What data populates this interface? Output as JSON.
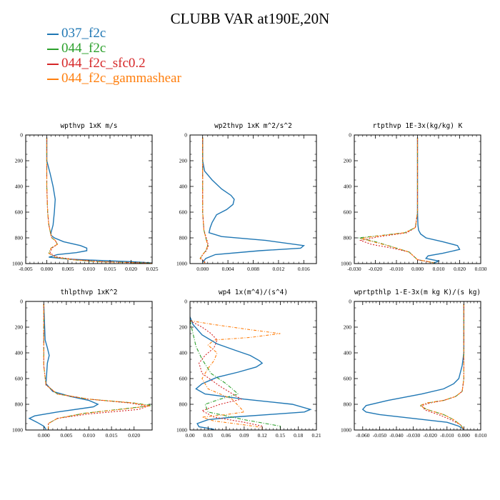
{
  "figure": {
    "title": "CLUBB VAR at190E,20N"
  },
  "legend": {
    "items": [
      {
        "name": "037_f2c",
        "color": "#1f77b4"
      },
      {
        "name": "044_f2c",
        "color": "#2ca02c"
      },
      {
        "name": "044_f2c_sfc0.2",
        "color": "#d62728"
      },
      {
        "name": "044_f2c_gammashear",
        "color": "#ff7f0e"
      }
    ]
  },
  "chart_data": [
    {
      "type": "line",
      "title": "wpthvp 1xK m/s",
      "xlim": [
        -0.005,
        0.025
      ],
      "xticks": [
        -0.005,
        0.0,
        0.005,
        0.01,
        0.015,
        0.02,
        0.025
      ],
      "xtick_labels": [
        "-0.005",
        "0.000",
        "0.005",
        "0.010",
        "0.015",
        "0.020",
        "0.025"
      ],
      "ylim": [
        1000,
        0
      ],
      "yticks": [
        0,
        200,
        400,
        600,
        800,
        1000
      ],
      "series": [
        {
          "name": "037_f2c",
          "x": [
            0.0,
            0.0,
            0.0008,
            0.0015,
            0.002,
            0.0018,
            0.0015,
            0.001,
            0.001,
            0.0018,
            0.004,
            0.008,
            0.0095,
            0.0095,
            0.007,
            0.0025,
            0.0005,
            0.005,
            0.012,
            0.02,
            0.025
          ],
          "y": [
            20,
            200,
            300,
            400,
            500,
            600,
            700,
            760,
            780,
            800,
            830,
            860,
            880,
            900,
            915,
            930,
            950,
            965,
            975,
            985,
            995
          ]
        },
        {
          "name": "044_f2c",
          "x": [
            0.0,
            0.0,
            0.0,
            0.0002,
            0.0005,
            0.001,
            0.0012,
            0.002,
            0.0025,
            0.001,
            0.0005,
            0.002,
            0.006,
            0.012,
            0.02,
            0.025
          ],
          "y": [
            20,
            200,
            400,
            600,
            700,
            780,
            800,
            820,
            850,
            880,
            920,
            950,
            970,
            985,
            992,
            997
          ]
        },
        {
          "name": "044_f2c_sfc0.2",
          "x": [
            0.0,
            0.0,
            0.0,
            0.0002,
            0.0005,
            0.001,
            0.0012,
            0.002,
            0.0025,
            0.0012,
            0.0008,
            0.0025,
            0.007,
            0.013,
            0.02,
            0.025
          ],
          "y": [
            20,
            200,
            400,
            600,
            700,
            780,
            800,
            820,
            850,
            880,
            920,
            950,
            970,
            985,
            992,
            997
          ]
        },
        {
          "name": "044_f2c_gammashear",
          "x": [
            0.0,
            0.0,
            0.0,
            0.0002,
            0.0005,
            0.001,
            0.0012,
            0.002,
            0.0025,
            0.001,
            0.0005,
            0.002,
            0.006,
            0.012,
            0.02,
            0.025
          ],
          "y": [
            20,
            200,
            400,
            600,
            700,
            780,
            800,
            820,
            850,
            880,
            920,
            950,
            970,
            985,
            992,
            997
          ]
        }
      ]
    },
    {
      "type": "line",
      "title": "wp2thvp 1xK m^2/s^2",
      "xlim": [
        -0.002,
        0.018
      ],
      "xticks": [
        0.0,
        0.004,
        0.008,
        0.012,
        0.016
      ],
      "xtick_labels": [
        "0.000",
        "0.004",
        "0.008",
        "0.012",
        "0.016"
      ],
      "ylim": [
        1000,
        0
      ],
      "yticks": [
        0,
        200,
        400,
        600,
        800,
        1000
      ],
      "series": [
        {
          "name": "037_f2c",
          "x": [
            0.0,
            0.0,
            0.0003,
            0.0015,
            0.003,
            0.0045,
            0.005,
            0.0048,
            0.0038,
            0.0022,
            0.0015,
            0.0012,
            0.001,
            0.003,
            0.01,
            0.016,
            0.0155,
            0.009,
            0.002,
            0.0005,
            0.0
          ],
          "y": [
            20,
            200,
            280,
            350,
            420,
            470,
            500,
            540,
            580,
            620,
            680,
            720,
            760,
            790,
            820,
            860,
            880,
            900,
            930,
            960,
            990
          ]
        },
        {
          "name": "044_f2c",
          "x": [
            0.0,
            0.0,
            0.0,
            0.0,
            0.0002,
            0.0006,
            0.0008,
            0.0005,
            0.0,
            -0.0004,
            0.0002,
            0.0003
          ],
          "y": [
            20,
            200,
            400,
            600,
            740,
            820,
            860,
            900,
            930,
            960,
            985,
            995
          ]
        },
        {
          "name": "044_f2c_sfc0.2",
          "x": [
            0.0,
            0.0,
            0.0,
            0.0,
            0.0002,
            0.0007,
            0.0009,
            0.0006,
            0.0,
            -0.0003,
            0.0003,
            0.0004
          ],
          "y": [
            20,
            200,
            400,
            600,
            740,
            820,
            860,
            900,
            930,
            960,
            985,
            995
          ]
        },
        {
          "name": "044_f2c_gammashear",
          "x": [
            0.0,
            0.0,
            0.0,
            0.0,
            0.0002,
            0.0006,
            0.0008,
            0.0005,
            0.0,
            -0.0004,
            0.0002,
            0.0003
          ],
          "y": [
            20,
            200,
            400,
            600,
            740,
            820,
            860,
            900,
            930,
            960,
            985,
            995
          ]
        }
      ]
    },
    {
      "type": "line",
      "title": "rtpthvp 1E-3x(kg/kg) K",
      "xlim": [
        -0.03,
        0.03
      ],
      "xticks": [
        -0.03,
        -0.02,
        -0.01,
        0.0,
        0.01,
        0.02,
        0.03
      ],
      "xtick_labels": [
        "-0.030",
        "-0.020",
        "-0.010",
        "0.000",
        "0.010",
        "0.020",
        "0.030"
      ],
      "ylim": [
        1000,
        0
      ],
      "yticks": [
        0,
        200,
        400,
        600,
        800,
        1000
      ],
      "series": [
        {
          "name": "037_f2c",
          "x": [
            0.0,
            0.0,
            0.0002,
            0.0005,
            0.0015,
            0.004,
            0.012,
            0.019,
            0.02,
            0.012,
            0.005,
            0.004,
            0.01,
            0.008
          ],
          "y": [
            20,
            600,
            700,
            740,
            770,
            800,
            830,
            860,
            890,
            920,
            940,
            960,
            980,
            995
          ]
        },
        {
          "name": "044_f2c",
          "x": [
            0.0,
            0.0,
            -0.001,
            -0.006,
            -0.022,
            -0.028,
            -0.02,
            -0.012,
            -0.004,
            -0.002,
            0.0,
            0.005,
            0.008
          ],
          "y": [
            20,
            600,
            720,
            760,
            790,
            800,
            830,
            870,
            910,
            940,
            970,
            985,
            995
          ]
        },
        {
          "name": "044_f2c_sfc0.2",
          "x": [
            0.0,
            0.0,
            -0.001,
            -0.005,
            -0.018,
            -0.027,
            -0.022,
            -0.012,
            -0.004,
            -0.002,
            0.0,
            0.005,
            0.008
          ],
          "y": [
            20,
            600,
            720,
            760,
            790,
            820,
            850,
            880,
            910,
            940,
            970,
            985,
            995
          ]
        },
        {
          "name": "044_f2c_gammashear",
          "x": [
            0.0,
            0.0,
            -0.001,
            -0.006,
            -0.021,
            -0.027,
            -0.02,
            -0.012,
            -0.004,
            -0.002,
            0.0,
            0.005,
            0.008
          ],
          "y": [
            20,
            600,
            720,
            760,
            790,
            805,
            835,
            870,
            910,
            940,
            970,
            985,
            995
          ]
        }
      ]
    },
    {
      "type": "line",
      "title": "thlpthvp 1xK^2",
      "xlim": [
        -0.004,
        0.024
      ],
      "xticks": [
        0.0,
        0.005,
        0.01,
        0.015,
        0.02
      ],
      "xtick_labels": [
        "0.000",
        "0.005",
        "0.010",
        "0.015",
        "0.020"
      ],
      "ylim": [
        1000,
        0
      ],
      "yticks": [
        0,
        200,
        400,
        600,
        800,
        1000
      ],
      "series": [
        {
          "name": "037_f2c",
          "x": [
            0.0,
            0.0003,
            0.0008,
            0.0012,
            0.0008,
            0.0005,
            0.002,
            0.006,
            0.01,
            0.012,
            0.011,
            0.003,
            -0.002,
            -0.0032,
            -0.0015,
            0.0,
            0.0005
          ],
          "y": [
            20,
            300,
            360,
            420,
            480,
            640,
            700,
            740,
            770,
            800,
            820,
            860,
            890,
            910,
            940,
            970,
            995
          ]
        },
        {
          "name": "044_f2c",
          "x": [
            0.0,
            0.0,
            0.0,
            0.0005,
            0.003,
            0.01,
            0.02,
            0.024,
            0.019,
            0.009,
            0.003,
            0.001,
            0.001,
            0.001
          ],
          "y": [
            20,
            200,
            500,
            650,
            720,
            760,
            790,
            810,
            830,
            870,
            910,
            950,
            980,
            995
          ]
        },
        {
          "name": "044_f2c_sfc0.2",
          "x": [
            0.0,
            0.0,
            0.0,
            0.0005,
            0.003,
            0.01,
            0.019,
            0.023,
            0.021,
            0.01,
            0.003,
            0.001,
            0.001,
            0.001
          ],
          "y": [
            20,
            200,
            500,
            650,
            720,
            760,
            790,
            815,
            840,
            875,
            910,
            950,
            980,
            995
          ]
        },
        {
          "name": "044_f2c_gammashear",
          "x": [
            0.0,
            0.0,
            0.0,
            0.0005,
            0.003,
            0.01,
            0.02,
            0.0235,
            0.019,
            0.009,
            0.003,
            0.001,
            0.001,
            0.001
          ],
          "y": [
            20,
            200,
            500,
            650,
            720,
            760,
            790,
            812,
            832,
            870,
            910,
            950,
            980,
            995
          ]
        }
      ]
    },
    {
      "type": "line",
      "title": "wp4 1x(m^4)/(s^4)",
      "xlim": [
        0.0,
        0.21
      ],
      "xticks": [
        0.0,
        0.03,
        0.06,
        0.09,
        0.12,
        0.15,
        0.18,
        0.21
      ],
      "xtick_labels": [
        "0.00",
        "0.03",
        "0.06",
        "0.09",
        "0.12",
        "0.15",
        "0.18",
        "0.21"
      ],
      "ylim": [
        1000,
        0
      ],
      "yticks": [
        0,
        200,
        400,
        600,
        800,
        1000
      ],
      "series": [
        {
          "name": "037_f2c",
          "x": [
            0.0,
            0.005,
            0.02,
            0.045,
            0.075,
            0.1,
            0.115,
            0.12,
            0.11,
            0.08,
            0.045,
            0.02,
            0.01,
            0.025,
            0.09,
            0.17,
            0.2,
            0.19,
            0.13,
            0.07,
            0.03,
            0.012,
            0.015,
            0.04
          ],
          "y": [
            120,
            180,
            260,
            330,
            380,
            420,
            460,
            480,
            510,
            550,
            590,
            640,
            680,
            720,
            760,
            800,
            840,
            860,
            880,
            900,
            920,
            950,
            975,
            995
          ]
        },
        {
          "name": "044_f2c",
          "x": [
            0.0,
            0.005,
            0.01,
            0.02,
            0.035,
            0.06,
            0.08,
            0.05,
            0.025,
            0.03,
            0.09,
            0.15,
            0.15
          ],
          "y": [
            150,
            250,
            350,
            450,
            560,
            640,
            720,
            760,
            800,
            860,
            920,
            970,
            995
          ]
        },
        {
          "name": "044_f2c_sfc0.2",
          "x": [
            0.0,
            0.02,
            0.035,
            0.045,
            0.04,
            0.025,
            0.015,
            0.02,
            0.05,
            0.085,
            0.05,
            0.02,
            0.04,
            0.09,
            0.12,
            0.12
          ],
          "y": [
            150,
            200,
            250,
            300,
            360,
            420,
            480,
            560,
            660,
            760,
            800,
            850,
            900,
            940,
            970,
            995
          ]
        },
        {
          "name": "044_f2c_gammashear",
          "x": [
            0.0,
            0.04,
            0.1,
            0.15,
            0.1,
            0.04,
            0.03,
            0.045,
            0.04,
            0.03,
            0.02,
            0.03,
            0.07,
            0.09,
            0.06,
            0.02,
            0.04,
            0.09,
            0.12,
            0.12
          ],
          "y": [
            150,
            180,
            220,
            250,
            280,
            300,
            340,
            400,
            460,
            520,
            600,
            680,
            760,
            860,
            880,
            900,
            930,
            960,
            980,
            995
          ]
        }
      ]
    },
    {
      "type": "line",
      "title": "wprtpthlp 1-E-3x(m kg K)/(s kg)",
      "xlim": [
        -0.065,
        0.01
      ],
      "xticks": [
        -0.06,
        -0.05,
        -0.04,
        -0.03,
        -0.02,
        -0.01,
        0.0,
        0.01
      ],
      "xtick_labels": [
        "-0.060",
        "-0.050",
        "-0.040",
        "-0.030",
        "-0.020",
        "-0.010",
        "0.000",
        "0.010"
      ],
      "ylim": [
        1000,
        0
      ],
      "yticks": [
        0,
        200,
        400,
        600,
        800,
        1000
      ],
      "series": [
        {
          "name": "037_f2c",
          "x": [
            0.0,
            0.0,
            -0.001,
            -0.003,
            -0.006,
            -0.012,
            -0.025,
            -0.045,
            -0.058,
            -0.06,
            -0.058,
            -0.05,
            -0.03,
            -0.01,
            -0.003,
            0.0
          ],
          "y": [
            20,
            400,
            500,
            600,
            640,
            680,
            720,
            770,
            810,
            840,
            860,
            880,
            910,
            940,
            970,
            995
          ]
        },
        {
          "name": "044_f2c",
          "x": [
            0.0,
            0.0,
            -0.001,
            -0.005,
            -0.012,
            -0.022,
            -0.026,
            -0.022,
            -0.012,
            -0.006,
            -0.002,
            0.0
          ],
          "y": [
            20,
            600,
            700,
            740,
            770,
            790,
            810,
            840,
            880,
            920,
            960,
            995
          ]
        },
        {
          "name": "044_f2c_sfc0.2",
          "x": [
            0.0,
            0.0,
            -0.001,
            -0.005,
            -0.012,
            -0.02,
            -0.025,
            -0.023,
            -0.014,
            -0.007,
            -0.002,
            0.0
          ],
          "y": [
            20,
            600,
            700,
            740,
            770,
            790,
            810,
            845,
            885,
            925,
            960,
            995
          ]
        },
        {
          "name": "044_f2c_gammashear",
          "x": [
            0.0,
            0.0,
            -0.001,
            -0.005,
            -0.012,
            -0.022,
            -0.026,
            -0.022,
            -0.012,
            -0.006,
            -0.002,
            0.0
          ],
          "y": [
            20,
            600,
            700,
            740,
            770,
            790,
            810,
            840,
            880,
            920,
            960,
            995
          ]
        }
      ]
    }
  ]
}
